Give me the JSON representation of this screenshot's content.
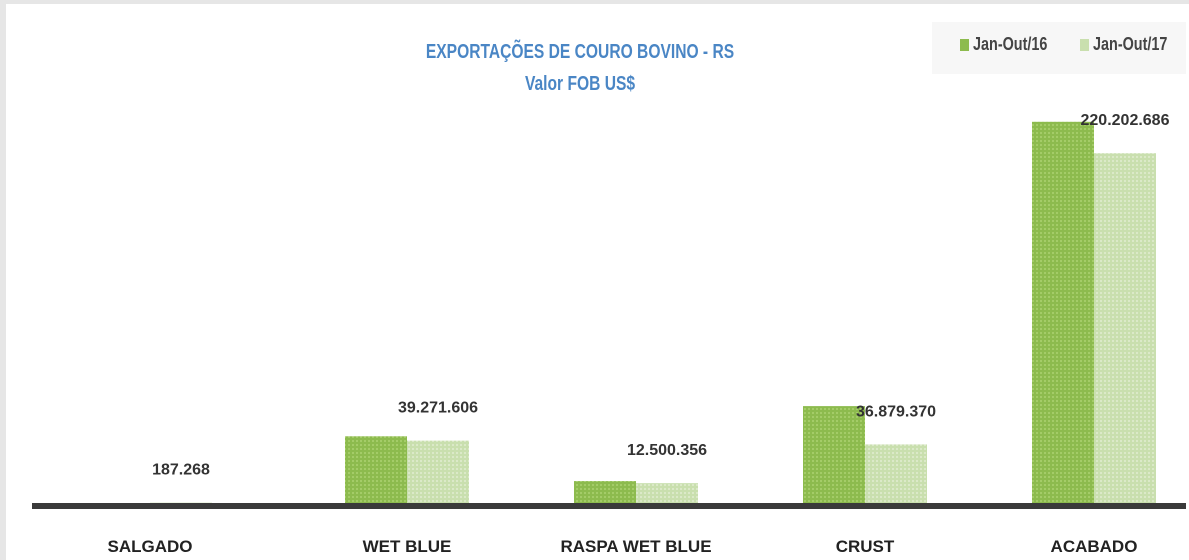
{
  "chart_data": {
    "type": "bar",
    "title": "EXPORTAÇÕES  DE COURO BOVINO  - RS",
    "subtitle": "Valor  FOB US$",
    "categories": [
      "SALGADO",
      "WET BLUE",
      "RASPA WET BLUE",
      "CRUST",
      "ACABADO"
    ],
    "series": [
      {
        "name": "Jan-Out/16",
        "color": "#8dbb4e",
        "values": [
          0,
          42000000,
          13800000,
          61000000,
          240000000
        ]
      },
      {
        "name": "Jan-Out/17",
        "color": "#c9dfae",
        "values": [
          187268,
          39271606,
          12500356,
          36879370,
          220202686
        ]
      }
    ],
    "data_labels": [
      "187.268",
      "39.271.606",
      "12.500.356",
      "36.879.370",
      "220.202.686"
    ],
    "ylim": [
      0,
      260000000
    ],
    "grid": false,
    "legend_position": "top-right"
  }
}
